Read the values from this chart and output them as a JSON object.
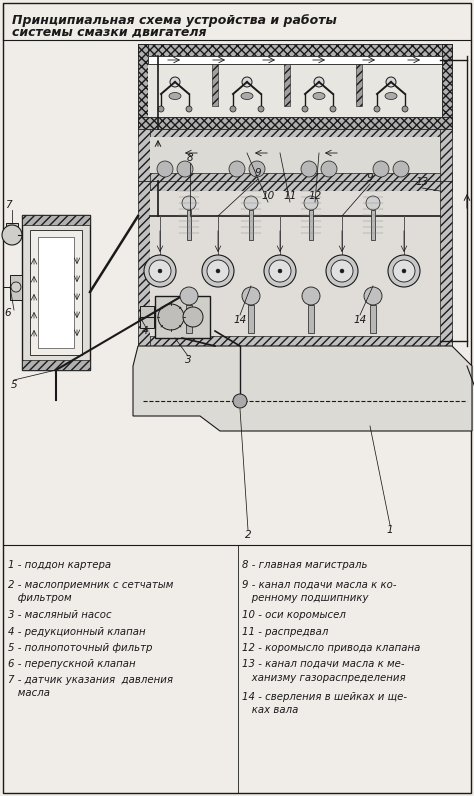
{
  "title_line1": "Принципиальная схема устройства и работы",
  "title_line2": "системы смазки двигателя",
  "bg_color": "#f0ede8",
  "diagram_color": "#1a1a1a",
  "legend_left": [
    [
      "1 - поддон картера",
      560
    ],
    [
      "2 - маслоприемник с сетчатым",
      580
    ],
    [
      "   фильтром",
      593
    ],
    [
      "3 - масляный насос",
      610
    ],
    [
      "4 - редукционный клапан",
      627
    ],
    [
      "5 - полнопоточный фильтр",
      643
    ],
    [
      "6 - перепускной клапан",
      659
    ],
    [
      "7 - датчик указания  давления",
      675
    ],
    [
      "   масла",
      688
    ]
  ],
  "legend_right": [
    [
      "8 - главная магистраль",
      560
    ],
    [
      "9 - канал подачи масла к ко-",
      580
    ],
    [
      "   ренному подшипнику",
      593
    ],
    [
      "10 - оси коромысел",
      610
    ],
    [
      "11 - распредвал",
      627
    ],
    [
      "12 - коромысло привода клапана",
      643
    ],
    [
      "13 - канал подачи масла к ме-",
      659
    ],
    [
      "   ханизму газораспределения",
      673
    ],
    [
      "14 - сверления в шейках и ще-",
      692
    ],
    [
      "   ках вала",
      705
    ]
  ],
  "figsize": [
    4.74,
    7.96
  ],
  "dpi": 100
}
